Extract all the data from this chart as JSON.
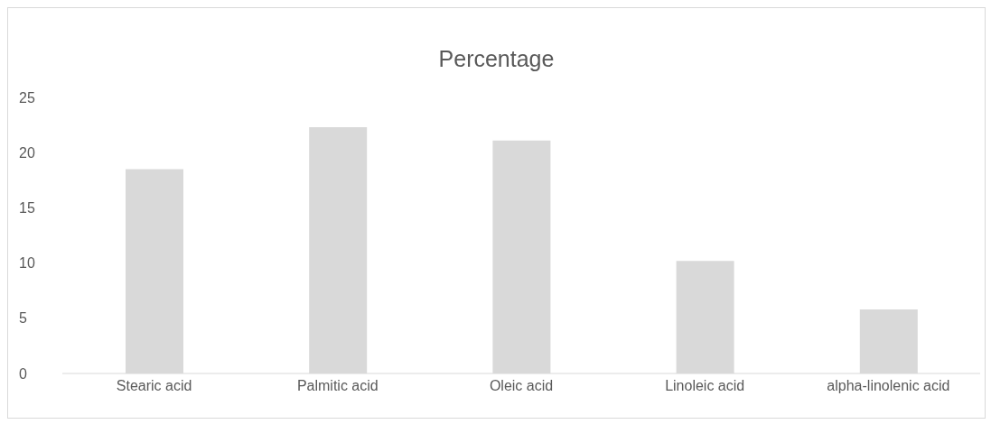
{
  "chart_data": {
    "type": "bar",
    "title": "Percentage",
    "categories": [
      "Stearic acid",
      "Palmitic acid",
      "Oleic acid",
      "Linoleic acid",
      "alpha-linolenic acid"
    ],
    "values": [
      18.5,
      22.3,
      21.1,
      10.2,
      5.8
    ],
    "color": "#d9d9d9",
    "ylim": [
      0,
      25
    ],
    "yticks": [
      0,
      5,
      10,
      15,
      20,
      25
    ],
    "grid": false
  }
}
